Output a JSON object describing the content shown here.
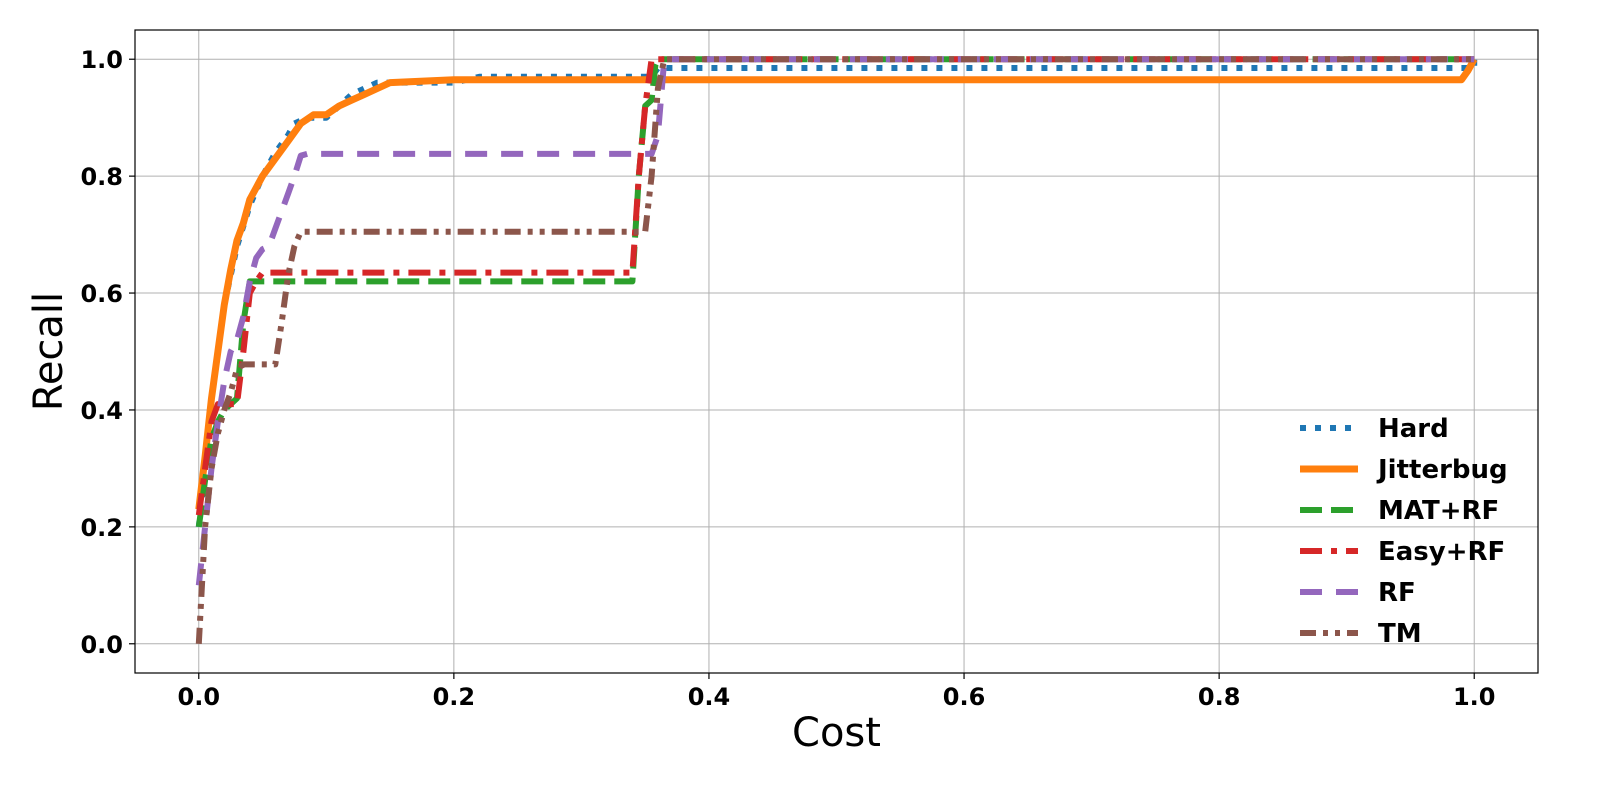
{
  "chart_data": {
    "type": "line",
    "title": "",
    "xlabel": "Cost",
    "ylabel": "Recall",
    "xlim": [
      -0.05,
      1.05
    ],
    "ylim": [
      -0.05,
      1.05
    ],
    "xticks": [
      0.0,
      0.2,
      0.4,
      0.6,
      0.8,
      1.0
    ],
    "xtick_labels": [
      "0.0",
      "0.2",
      "0.4",
      "0.6",
      "0.8",
      "1.0"
    ],
    "yticks": [
      0.0,
      0.2,
      0.4,
      0.6,
      0.8,
      1.0
    ],
    "ytick_labels": [
      "0.0",
      "0.2",
      "0.4",
      "0.6",
      "0.8",
      "1.0"
    ],
    "grid": true,
    "legend_position": "lower-right",
    "series": [
      {
        "name": "Hard",
        "color": "#1f77b4",
        "style": "dotted",
        "points": [
          [
            0,
            0.2
          ],
          [
            0.005,
            0.3
          ],
          [
            0.01,
            0.42
          ],
          [
            0.015,
            0.5
          ],
          [
            0.02,
            0.58
          ],
          [
            0.03,
            0.68
          ],
          [
            0.04,
            0.75
          ],
          [
            0.05,
            0.8
          ],
          [
            0.06,
            0.84
          ],
          [
            0.07,
            0.87
          ],
          [
            0.075,
            0.89
          ],
          [
            0.085,
            0.9
          ],
          [
            0.1,
            0.9
          ],
          [
            0.11,
            0.92
          ],
          [
            0.12,
            0.94
          ],
          [
            0.13,
            0.95
          ],
          [
            0.14,
            0.96
          ],
          [
            0.2,
            0.96
          ],
          [
            0.22,
            0.97
          ],
          [
            0.355,
            0.97
          ],
          [
            0.36,
            0.985
          ],
          [
            1.0,
            0.985
          ],
          [
            1.0,
            1.0
          ]
        ]
      },
      {
        "name": "Jitterbug",
        "color": "#ff7f0e",
        "style": "solid",
        "points": [
          [
            0,
            0.23
          ],
          [
            0.005,
            0.32
          ],
          [
            0.01,
            0.42
          ],
          [
            0.015,
            0.5
          ],
          [
            0.02,
            0.58
          ],
          [
            0.025,
            0.64
          ],
          [
            0.03,
            0.69
          ],
          [
            0.035,
            0.72
          ],
          [
            0.04,
            0.76
          ],
          [
            0.05,
            0.8
          ],
          [
            0.06,
            0.83
          ],
          [
            0.07,
            0.86
          ],
          [
            0.08,
            0.89
          ],
          [
            0.09,
            0.905
          ],
          [
            0.1,
            0.905
          ],
          [
            0.11,
            0.92
          ],
          [
            0.12,
            0.93
          ],
          [
            0.13,
            0.94
          ],
          [
            0.14,
            0.95
          ],
          [
            0.15,
            0.96
          ],
          [
            0.2,
            0.965
          ],
          [
            0.355,
            0.965
          ],
          [
            0.99,
            0.965
          ],
          [
            0.995,
            0.98
          ],
          [
            1.0,
            1.0
          ]
        ]
      },
      {
        "name": "MAT+RF",
        "color": "#2ca02c",
        "style": "dashed",
        "points": [
          [
            0,
            0.2
          ],
          [
            0.005,
            0.28
          ],
          [
            0.01,
            0.35
          ],
          [
            0.015,
            0.38
          ],
          [
            0.02,
            0.4
          ],
          [
            0.03,
            0.42
          ],
          [
            0.035,
            0.55
          ],
          [
            0.04,
            0.62
          ],
          [
            0.045,
            0.62
          ],
          [
            0.34,
            0.62
          ],
          [
            0.345,
            0.8
          ],
          [
            0.35,
            0.92
          ],
          [
            0.355,
            0.93
          ],
          [
            0.358,
            0.99
          ],
          [
            0.36,
            1.0
          ],
          [
            1.0,
            1.0
          ]
        ]
      },
      {
        "name": "Easy+RF",
        "color": "#d62728",
        "style": "dashdot",
        "points": [
          [
            0,
            0.22
          ],
          [
            0.005,
            0.3
          ],
          [
            0.01,
            0.38
          ],
          [
            0.015,
            0.41
          ],
          [
            0.03,
            0.41
          ],
          [
            0.035,
            0.5
          ],
          [
            0.04,
            0.6
          ],
          [
            0.045,
            0.62
          ],
          [
            0.05,
            0.635
          ],
          [
            0.34,
            0.635
          ],
          [
            0.345,
            0.8
          ],
          [
            0.35,
            0.92
          ],
          [
            0.355,
            1.0
          ],
          [
            1.0,
            1.0
          ]
        ]
      },
      {
        "name": "RF",
        "color": "#9467bd",
        "style": "loosedash",
        "points": [
          [
            0,
            0.1
          ],
          [
            0.005,
            0.2
          ],
          [
            0.01,
            0.3
          ],
          [
            0.015,
            0.38
          ],
          [
            0.02,
            0.45
          ],
          [
            0.025,
            0.5
          ],
          [
            0.03,
            0.52
          ],
          [
            0.035,
            0.56
          ],
          [
            0.04,
            0.62
          ],
          [
            0.045,
            0.66
          ],
          [
            0.05,
            0.675
          ],
          [
            0.055,
            0.68
          ],
          [
            0.06,
            0.71
          ],
          [
            0.065,
            0.74
          ],
          [
            0.07,
            0.77
          ],
          [
            0.075,
            0.8
          ],
          [
            0.08,
            0.835
          ],
          [
            0.085,
            0.838
          ],
          [
            0.355,
            0.838
          ],
          [
            0.36,
            0.87
          ],
          [
            0.365,
            1.0
          ],
          [
            1.0,
            1.0
          ]
        ]
      },
      {
        "name": "TM",
        "color": "#8c564b",
        "style": "dashdotdot",
        "points": [
          [
            0,
            0.0
          ],
          [
            0.005,
            0.2
          ],
          [
            0.01,
            0.3
          ],
          [
            0.015,
            0.36
          ],
          [
            0.02,
            0.4
          ],
          [
            0.025,
            0.43
          ],
          [
            0.03,
            0.47
          ],
          [
            0.035,
            0.478
          ],
          [
            0.06,
            0.478
          ],
          [
            0.065,
            0.55
          ],
          [
            0.07,
            0.63
          ],
          [
            0.075,
            0.68
          ],
          [
            0.08,
            0.705
          ],
          [
            0.35,
            0.705
          ],
          [
            0.355,
            0.8
          ],
          [
            0.36,
            0.95
          ],
          [
            0.365,
            1.0
          ],
          [
            1.0,
            1.0
          ]
        ]
      }
    ]
  }
}
